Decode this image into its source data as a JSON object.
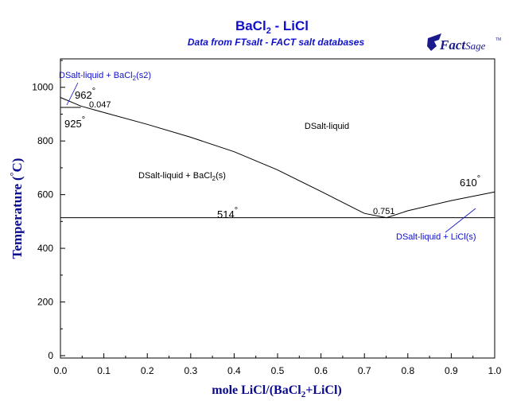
{
  "header": {
    "title_main": "BaCl",
    "title_sub": "2",
    "title_rest": " - LiCl",
    "subtitle": "Data from FTsalt - FACT salt databases"
  },
  "logo": {
    "text_fact": "Fact",
    "text_sage": "Sage",
    "tm": "TM",
    "color": "#1a1a8c"
  },
  "colors": {
    "title": "#1010c8",
    "axis_label": "#0a0a8c",
    "curve": "#000000",
    "annotation_blue": "#1010c8"
  },
  "chart_data": {
    "type": "line",
    "title": "BaCl2 - LiCl",
    "xlabel": "mole LiCl/(BaCl2+LiCl)",
    "ylabel": "Temperature (°C)",
    "xlim": [
      0,
      1
    ],
    "ylim": [
      0,
      1100
    ],
    "x_ticks": [
      0.0,
      0.1,
      0.2,
      0.3,
      0.4,
      0.5,
      0.6,
      0.7,
      0.8,
      0.9,
      1.0
    ],
    "x_tick_labels": [
      "0.0",
      "0.1",
      "0.2",
      "0.3",
      "0.4",
      "0.5",
      "0.6",
      "0.7",
      "0.8",
      "0.9",
      "1.0"
    ],
    "y_ticks": [
      0,
      200,
      400,
      600,
      800,
      1000
    ],
    "y_tick_labels": [
      "0",
      "200",
      "400",
      "600",
      "800",
      "1000"
    ],
    "grid": false,
    "series": [
      {
        "kind": "liquidus_BaCl2_s2",
        "points": [
          [
            0.0,
            962
          ],
          [
            0.047,
            930
          ]
        ]
      },
      {
        "kind": "liquidus_BaCl2_s",
        "points": [
          [
            0.047,
            930
          ],
          [
            0.1,
            906
          ],
          [
            0.2,
            862
          ],
          [
            0.3,
            814
          ],
          [
            0.4,
            760
          ],
          [
            0.5,
            692
          ],
          [
            0.6,
            612
          ],
          [
            0.7,
            530
          ],
          [
            0.751,
            514
          ]
        ]
      },
      {
        "kind": "liquidus_LiCl",
        "points": [
          [
            0.751,
            514
          ],
          [
            0.8,
            540
          ],
          [
            0.9,
            578
          ],
          [
            1.0,
            610
          ]
        ]
      },
      {
        "kind": "eutectic_isotherm",
        "points": [
          [
            0.0,
            514
          ],
          [
            1.0,
            514
          ]
        ]
      },
      {
        "kind": "transition_isotherm",
        "points": [
          [
            0.0,
            925
          ],
          [
            0.047,
            925
          ]
        ]
      }
    ],
    "annotations": [
      {
        "id": "962",
        "text": "962",
        "degree": "°"
      },
      {
        "id": "925",
        "text": "925",
        "degree": "°"
      },
      {
        "id": "047",
        "text": "0.047"
      },
      {
        "id": "514",
        "text": "514",
        "degree": "°"
      },
      {
        "id": "751",
        "text": "0.751"
      },
      {
        "id": "610",
        "text": "610",
        "degree": "°"
      }
    ],
    "regions": [
      {
        "id": "liquid",
        "text": "DSalt-liquid"
      },
      {
        "id": "bacl2s",
        "text_a": "DSalt-liquid + BaCl",
        "sub": "2",
        "text_b": "(s)"
      },
      {
        "id": "bacl2s2",
        "text_a": "DSalt-liquid + BaCl",
        "sub": "2",
        "text_b": "(s2)"
      },
      {
        "id": "licl",
        "text": "DSalt-liquid + LiCl(s)"
      }
    ]
  },
  "axis_text": {
    "ylabel_main": "Temperature",
    "ylabel_paren_open": "(",
    "ylabel_deg": "°",
    "ylabel_unit": "C)",
    "xlabel_a": "mole LiCl/(BaCl",
    "xlabel_sub": "2",
    "xlabel_b": "+LiCl)"
  }
}
